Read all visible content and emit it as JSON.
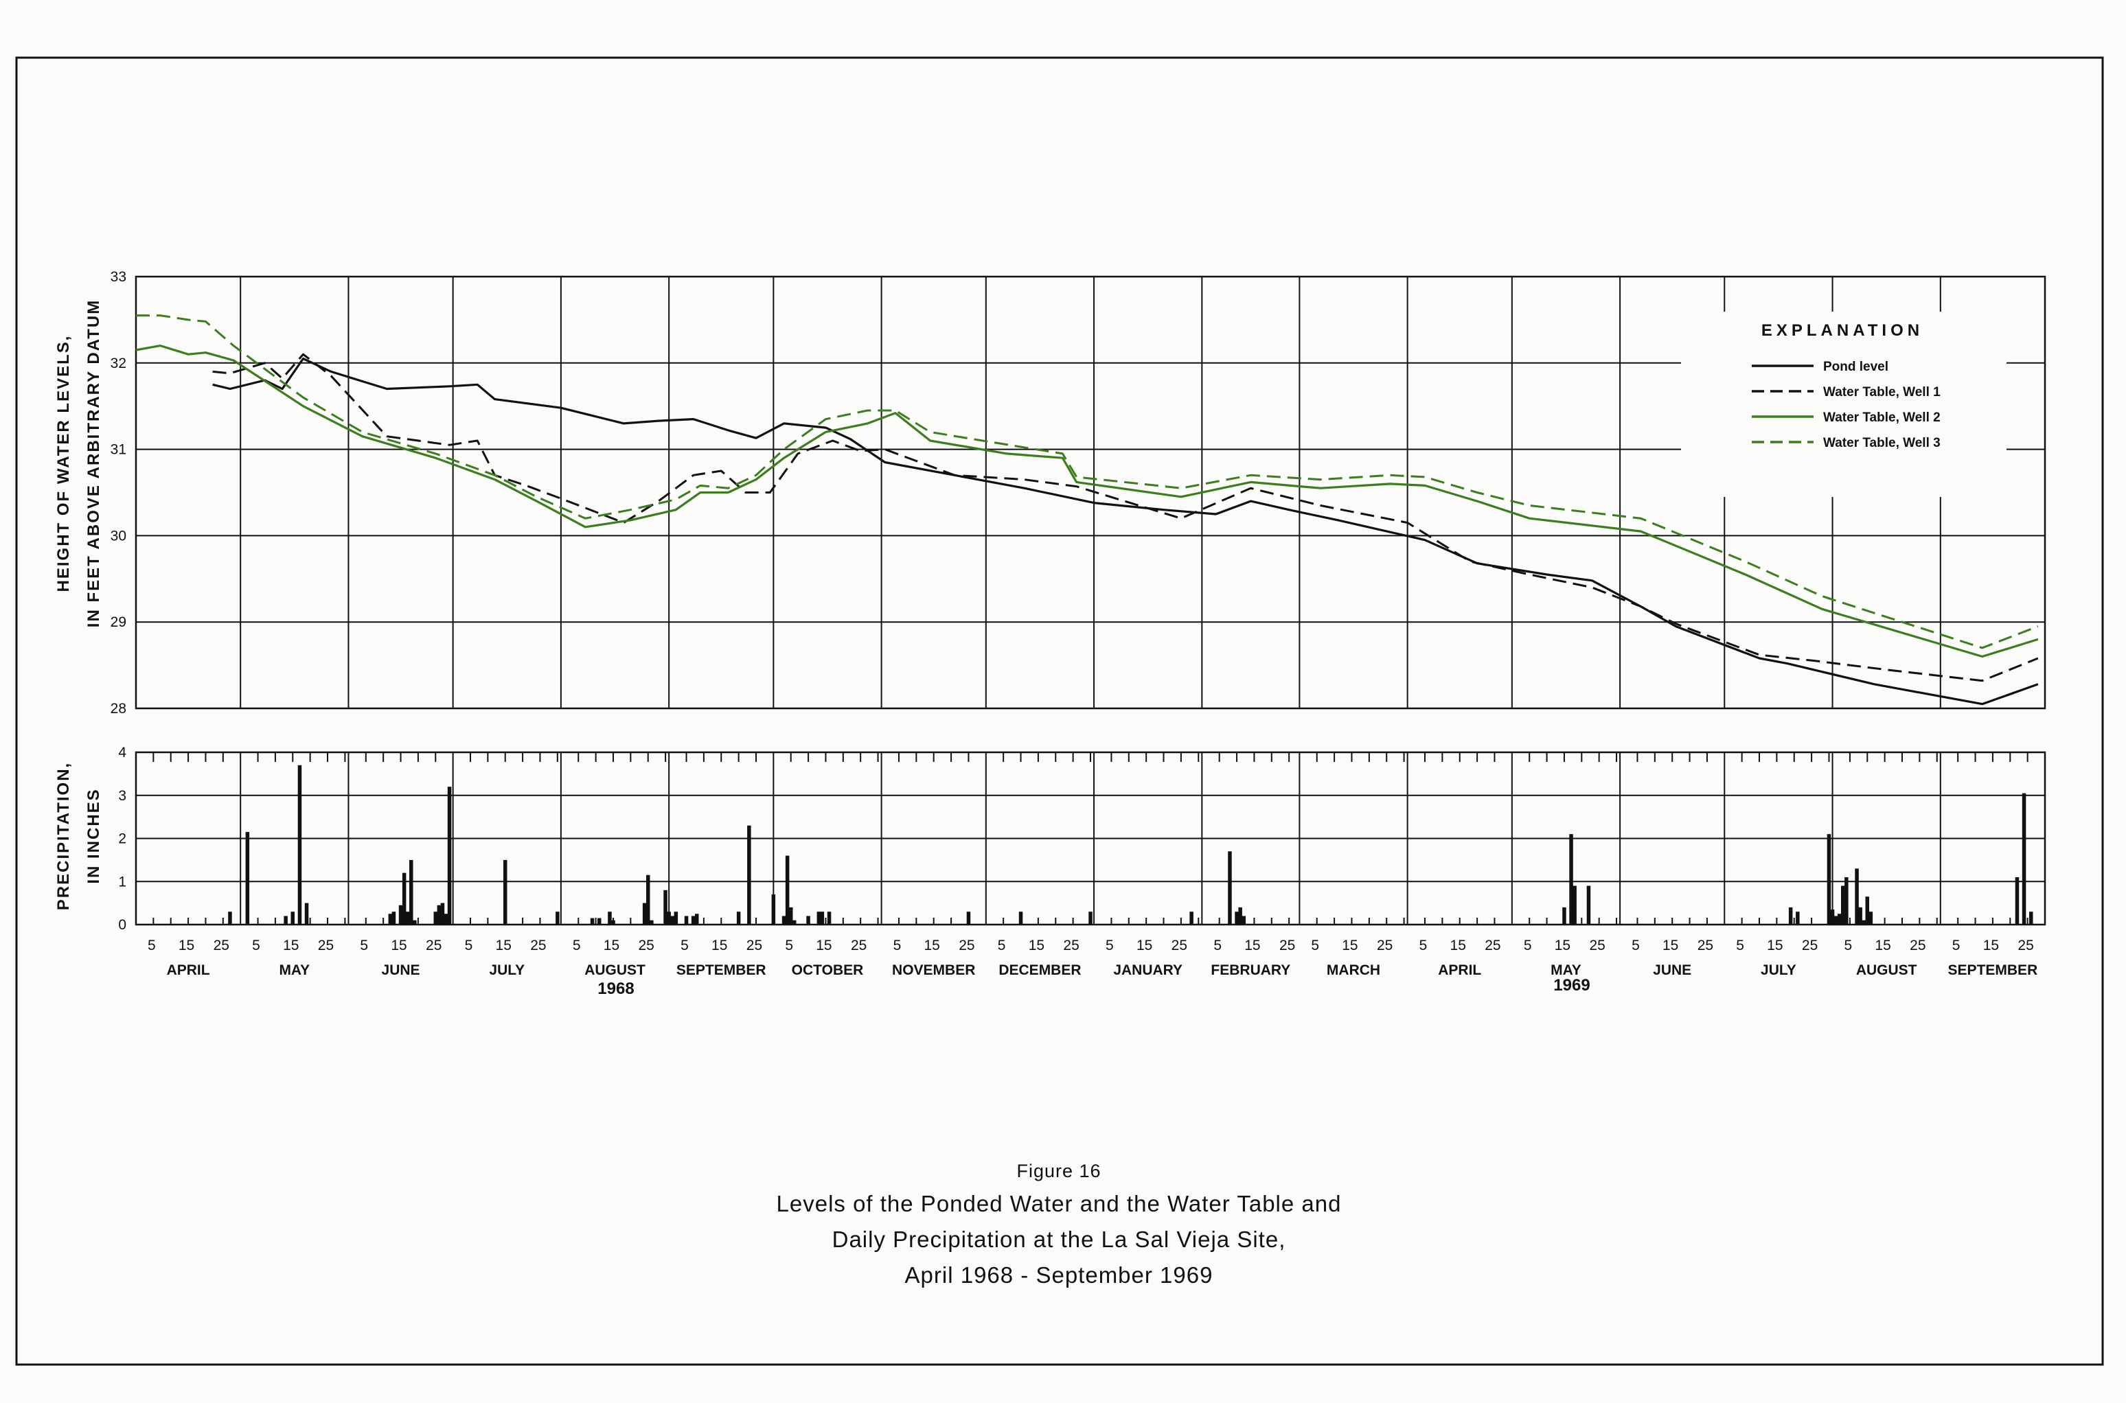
{
  "figure": {
    "label": "Figure 16",
    "title_lines": [
      "Levels of the Ponded Water and the Water Table and",
      "Daily Precipitation at the La Sal Vieja Site,",
      "April 1968 - September 1969"
    ]
  },
  "colors": {
    "black": "#111111",
    "green": "#3c7d1e"
  },
  "chart_data": [
    {
      "type": "line",
      "ylabel_lines": [
        "HEIGHT OF WATER LEVELS,",
        "IN FEET ABOVE ARBITRARY DATUM"
      ],
      "ylim": [
        28,
        33
      ],
      "yticks": [
        "28",
        "29",
        "30",
        "31",
        "32",
        "33"
      ],
      "x_unit": "days since April 1, 1968",
      "xlim": [
        0,
        548
      ],
      "grid": true,
      "legend_title": "EXPLANATION",
      "legend_position": "top-right",
      "series": [
        {
          "name": "Pond level",
          "color": "#111111",
          "dash": "solid",
          "x": [
            22,
            27,
            37,
            42,
            48,
            56,
            72,
            90,
            98,
            103,
            122,
            140,
            150,
            160,
            170,
            178,
            186,
            198,
            205,
            215,
            235,
            255,
            275,
            295,
            310,
            320,
            331,
            345,
            370,
            385,
            405,
            418,
            432,
            442,
            466,
            474,
            499,
            530,
            546
          ],
          "y": [
            31.75,
            31.7,
            31.8,
            31.7,
            32.05,
            31.9,
            31.7,
            31.73,
            31.75,
            31.58,
            31.48,
            31.3,
            31.33,
            31.35,
            31.22,
            31.13,
            31.3,
            31.25,
            31.12,
            30.85,
            30.7,
            30.55,
            30.38,
            30.3,
            30.25,
            30.4,
            30.3,
            30.18,
            29.95,
            29.68,
            29.55,
            29.48,
            29.18,
            28.95,
            28.58,
            28.52,
            28.28,
            28.05,
            28.28
          ]
        },
        {
          "name": "Water Table, Well 1",
          "color": "#111111",
          "dash": "dashed",
          "x": [
            22,
            27,
            37,
            42,
            48,
            56,
            72,
            90,
            98,
            103,
            112,
            122,
            140,
            150,
            160,
            168,
            175,
            182,
            190,
            200,
            208,
            215,
            235,
            255,
            270,
            300,
            320,
            340,
            365,
            383,
            400,
            418,
            432,
            442,
            466,
            482,
            502,
            530,
            546
          ],
          "y": [
            31.9,
            31.88,
            32.0,
            31.82,
            32.1,
            31.85,
            31.15,
            31.05,
            31.1,
            30.7,
            30.58,
            30.43,
            30.15,
            30.4,
            30.7,
            30.75,
            30.5,
            30.5,
            30.95,
            31.1,
            30.98,
            31.0,
            30.7,
            30.65,
            30.57,
            30.2,
            30.55,
            30.35,
            30.15,
            29.7,
            29.55,
            29.4,
            29.18,
            28.98,
            28.62,
            28.55,
            28.45,
            28.32,
            28.58
          ]
        },
        {
          "name": "Water Table, Well 2",
          "color": "#3c7d1e",
          "dash": "solid",
          "x": [
            0,
            7,
            15,
            20,
            28,
            48,
            65,
            86,
            103,
            115,
            129,
            142,
            155,
            162,
            170,
            178,
            186,
            198,
            210,
            218,
            228,
            250,
            266,
            270,
            300,
            320,
            340,
            360,
            370,
            385,
            400,
            432,
            462,
            484,
            530,
            546
          ],
          "y": [
            32.15,
            32.2,
            32.1,
            32.12,
            32.03,
            31.5,
            31.15,
            30.9,
            30.65,
            30.4,
            30.1,
            30.18,
            30.3,
            30.5,
            30.5,
            30.65,
            30.9,
            31.2,
            31.3,
            31.42,
            31.1,
            30.95,
            30.9,
            30.62,
            30.45,
            30.62,
            30.55,
            30.6,
            30.58,
            30.4,
            30.2,
            30.05,
            29.55,
            29.15,
            28.6,
            28.8
          ]
        },
        {
          "name": "Water Table, Well 3",
          "color": "#3c7d1e",
          "dash": "dashed",
          "x": [
            0,
            7,
            15,
            20,
            28,
            48,
            65,
            86,
            103,
            115,
            129,
            142,
            155,
            162,
            170,
            178,
            186,
            198,
            210,
            218,
            228,
            240,
            266,
            270,
            300,
            320,
            340,
            360,
            370,
            385,
            400,
            432,
            462,
            484,
            530,
            546
          ],
          "y": [
            32.55,
            32.55,
            32.5,
            32.48,
            32.2,
            31.6,
            31.2,
            30.95,
            30.7,
            30.45,
            30.2,
            30.3,
            30.42,
            30.58,
            30.55,
            30.7,
            31.0,
            31.35,
            31.45,
            31.45,
            31.2,
            31.12,
            30.95,
            30.68,
            30.55,
            30.7,
            30.65,
            30.7,
            30.68,
            30.5,
            30.35,
            30.2,
            29.7,
            29.3,
            28.7,
            28.95
          ]
        }
      ]
    },
    {
      "type": "bar",
      "ylabel_lines": [
        "PRECIPITATION,",
        "IN INCHES"
      ],
      "ylim": [
        0,
        4
      ],
      "yticks": [
        "0",
        "1",
        "2",
        "3",
        "4"
      ],
      "x_unit": "days since April 1, 1968",
      "grid": true,
      "day_ticks": [
        "5",
        "15",
        "25"
      ],
      "months": [
        "APRIL",
        "MAY",
        "JUNE",
        "JULY",
        "AUGUST",
        "SEPTEMBER",
        "OCTOBER",
        "NOVEMBER",
        "DECEMBER",
        "JANUARY",
        "FEBRUARY",
        "MARCH",
        "APRIL",
        "MAY",
        "JUNE",
        "JULY",
        "AUGUST",
        "SEPTEMBER"
      ],
      "years": [
        {
          "label": "1968"
        },
        {
          "label": "1969"
        }
      ],
      "x": [
        27,
        32,
        43,
        45,
        47,
        49,
        73,
        74,
        76,
        77,
        78,
        79,
        80,
        86,
        87,
        88,
        89,
        90,
        106,
        121,
        131,
        133,
        136,
        137,
        146,
        147,
        148,
        152,
        153,
        154,
        155,
        158,
        160,
        161,
        173,
        176,
        183,
        186,
        187,
        188,
        189,
        193,
        196,
        197,
        199,
        239,
        254,
        274,
        303,
        314,
        316,
        317,
        318,
        410,
        412,
        413,
        417,
        475,
        477,
        486,
        487,
        488,
        489,
        490,
        491,
        494,
        495,
        496,
        497,
        498,
        540,
        542,
        544
      ],
      "values": [
        0.3,
        2.15,
        0.2,
        0.3,
        3.7,
        0.5,
        0.25,
        0.3,
        0.45,
        1.2,
        0.3,
        1.5,
        0.1,
        0.3,
        0.45,
        0.5,
        0.25,
        3.2,
        1.5,
        0.3,
        0.15,
        0.15,
        0.3,
        0.1,
        0.5,
        1.15,
        0.1,
        0.8,
        0.3,
        0.2,
        0.3,
        0.2,
        0.2,
        0.25,
        0.3,
        2.3,
        0.7,
        0.2,
        1.6,
        0.4,
        0.1,
        0.2,
        0.3,
        0.3,
        0.3,
        0.3,
        0.3,
        0.3,
        0.3,
        1.7,
        0.3,
        0.4,
        0.2,
        0.4,
        2.1,
        0.9,
        0.9,
        0.4,
        0.3,
        2.1,
        0.35,
        0.2,
        0.25,
        0.9,
        1.1,
        1.3,
        0.4,
        0.1,
        0.65,
        0.3,
        1.1,
        3.05,
        0.3
      ]
    }
  ]
}
